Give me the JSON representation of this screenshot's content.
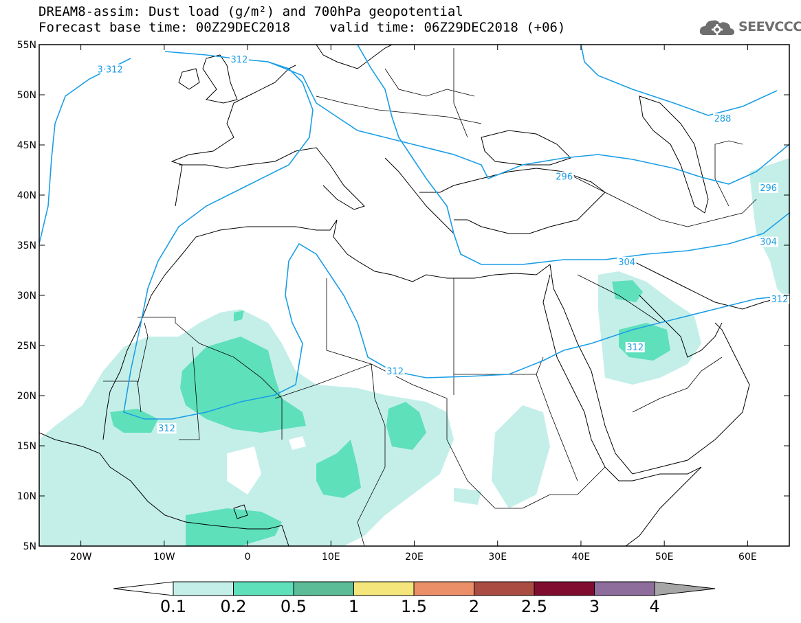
{
  "title_line1": "DREAM8-assim: Dust load (g/m²) and 700hPa geopotential",
  "title_line2": "Forecast base time: 00Z29DEC2018     valid time: 06Z29DEC2018 (+06)",
  "logo": {
    "icon": "cloud-cog-icon",
    "text": "SEEVCCC"
  },
  "map": {
    "lon_range": [
      -25,
      65
    ],
    "lat_range": [
      5,
      55
    ],
    "lat_ticks": [
      {
        "value": 55,
        "label": "55N"
      },
      {
        "value": 50,
        "label": "50N"
      },
      {
        "value": 45,
        "label": "45N"
      },
      {
        "value": 40,
        "label": "40N"
      },
      {
        "value": 35,
        "label": "35N"
      },
      {
        "value": 30,
        "label": "30N"
      },
      {
        "value": 25,
        "label": "25N"
      },
      {
        "value": 20,
        "label": "20N"
      },
      {
        "value": 15,
        "label": "15N"
      },
      {
        "value": 10,
        "label": "10N"
      },
      {
        "value": 5,
        "label": "5N"
      }
    ],
    "lon_ticks": [
      {
        "value": -20,
        "label": "20W"
      },
      {
        "value": -10,
        "label": "10W"
      },
      {
        "value": 0,
        "label": "0"
      },
      {
        "value": 10,
        "label": "10E"
      },
      {
        "value": 20,
        "label": "20E"
      },
      {
        "value": 30,
        "label": "30E"
      },
      {
        "value": 40,
        "label": "40E"
      },
      {
        "value": 50,
        "label": "50E"
      },
      {
        "value": 60,
        "label": "60E"
      }
    ],
    "contour_labels": [
      {
        "text": "3·312",
        "lon": -16.5,
        "lat": 52.5
      },
      {
        "text": "312",
        "lon": -1,
        "lat": 53.5
      },
      {
        "text": "288",
        "lon": 57,
        "lat": 47.6
      },
      {
        "text": "296",
        "lon": 38,
        "lat": 41.8
      },
      {
        "text": "296",
        "lon": 62.5,
        "lat": 40.7
      },
      {
        "text": "304",
        "lon": 62.5,
        "lat": 35.3
      },
      {
        "text": "304",
        "lon": 45.5,
        "lat": 33.3
      },
      {
        "text": "312",
        "lon": 65,
        "lat": 29.6
      },
      {
        "text": "312",
        "lon": 46.5,
        "lat": 24.8
      },
      {
        "text": "312",
        "lon": 17.7,
        "lat": 22.4
      },
      {
        "text": "312",
        "lon": -9.7,
        "lat": 16.7
      }
    ]
  },
  "colorbar": {
    "thresholds": [
      "0.1",
      "0.2",
      "0.5",
      "1",
      "1.5",
      "2",
      "2.5",
      "3",
      "4"
    ],
    "colors": [
      "#ffffff",
      "#c4efe9",
      "#5ee0bb",
      "#5cbc98",
      "#f4e67a",
      "#ea8f67",
      "#ab4c42",
      "#800c2f",
      "#8e6c9b",
      "#a6a6a6"
    ]
  }
}
